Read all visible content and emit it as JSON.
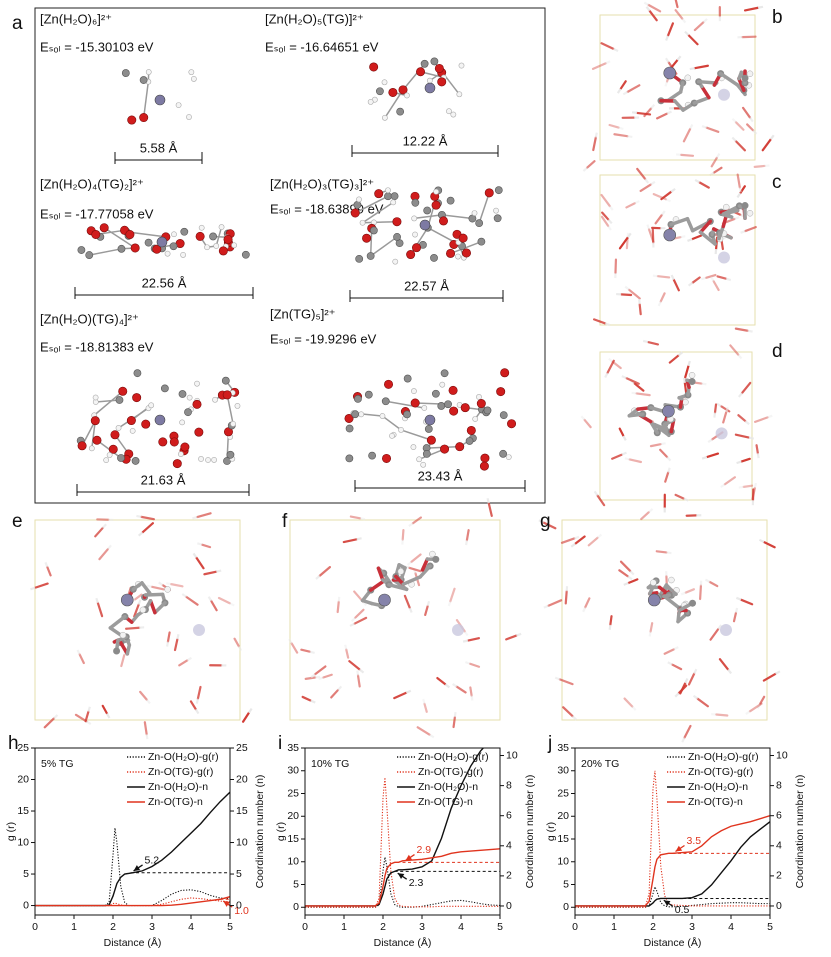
{
  "panel_a": {
    "label": "a",
    "items": [
      {
        "formula": "[Zn(H₂O)₆]²⁺",
        "energy": "Eₛₒₗ = -15.30103 eV",
        "length": "5.58 Å"
      },
      {
        "formula": "[Zn(H₂O)₅(TG)]²⁺",
        "energy": "Eₛₒₗ = -16.64651 eV",
        "length": "12.22 Å"
      },
      {
        "formula": "[Zn(H₂O)₄(TG)₂]²⁺",
        "energy": "Eₛₒₗ = -17.77058 eV",
        "length": "22.56 Å"
      },
      {
        "formula": "[Zn(H₂O)₃(TG)₃]²⁺",
        "energy": "Eₛₒₗ = -18.63899 eV",
        "length": "22.57 Å"
      },
      {
        "formula": "[Zn(H₂O)(TG)₄]²⁺",
        "energy": "Eₛₒₗ = -18.81383 eV",
        "length": "21.63 Å"
      },
      {
        "formula": "[Zn(TG)₅]²⁺",
        "energy": "Eₛₒₗ = -19.9296 eV",
        "length": "23.43 Å"
      }
    ]
  },
  "snapshots": [
    {
      "label": "b"
    },
    {
      "label": "c"
    },
    {
      "label": "d"
    },
    {
      "label": "e"
    },
    {
      "label": "f"
    },
    {
      "label": "g"
    }
  ],
  "chart_data": [
    {
      "type": "line",
      "panel": "h",
      "label": "5% TG",
      "x_label": "Distance (Å)",
      "y_label": "g (r)",
      "y2_label": "Coordination number (n)",
      "x": [
        0,
        0.5,
        1,
        1.5,
        1.8,
        1.9,
        2.0,
        2.05,
        2.1,
        2.2,
        2.3,
        2.4,
        2.5,
        2.75,
        3,
        3.25,
        3.5,
        3.75,
        4,
        4.25,
        4.5,
        4.75,
        5
      ],
      "xlim": [
        0,
        5
      ],
      "xticks": [
        0,
        1,
        2,
        3,
        4,
        5
      ],
      "ylim": [
        -1.5,
        25
      ],
      "yticks": [
        0,
        5,
        10,
        15,
        20,
        25
      ],
      "y2lim": [
        -1.5,
        25
      ],
      "y2ticks": [
        0,
        5,
        10,
        15,
        20,
        25
      ],
      "series": [
        {
          "name": "Zn-O(H₂O)-g(r)",
          "color": "#111111",
          "line_style": "dotted",
          "values": [
            0,
            0,
            0,
            0,
            0,
            0.5,
            8,
            12.3,
            10,
            3,
            0.5,
            0,
            0,
            0,
            0,
            0.8,
            1.8,
            2.4,
            2.5,
            2.2,
            1.6,
            1.2,
            1.1
          ]
        },
        {
          "name": "Zn-O(TG)-g(r)",
          "color": "#e0341e",
          "line_style": "dotted",
          "values": [
            0,
            0,
            0,
            0,
            0,
            0,
            0.3,
            0.4,
            0.3,
            0.1,
            0,
            0,
            0,
            0,
            0,
            0.2,
            0.6,
            1.0,
            1.2,
            1.1,
            0.9,
            0.7,
            0.6
          ]
        },
        {
          "name": "Zn-O(H₂O)-n",
          "color": "#111111",
          "line_style": "solid",
          "axis": "y2",
          "values": [
            0,
            0,
            0,
            0,
            0,
            0.1,
            1.5,
            2.5,
            3.5,
            4.5,
            5.0,
            5.1,
            5.2,
            5.5,
            6.2,
            7.2,
            8.5,
            10,
            11.5,
            13,
            14.8,
            16.5,
            18
          ]
        },
        {
          "name": "Zn-O(TG)-n",
          "color": "#e0341e",
          "line_style": "solid",
          "axis": "y2",
          "values": [
            0,
            0,
            0,
            0,
            0,
            0,
            0,
            0,
            0,
            0,
            0,
            0,
            0,
            0,
            0,
            0,
            0.05,
            0.2,
            0.4,
            0.6,
            0.8,
            1.0,
            1.4
          ]
        }
      ],
      "annotations": [
        {
          "text": "5.2",
          "x": 2.45,
          "y": 5.2,
          "axis": "y2",
          "color": "#111111"
        },
        {
          "text": "1.0",
          "x": 4.75,
          "y": 1.0,
          "axis": "y2",
          "color": "#e0341e"
        }
      ]
    },
    {
      "type": "line",
      "panel": "i",
      "label": "10% TG",
      "x_label": "Distance (Å)",
      "y_label": "g (r)",
      "y2_label": "Coordination number (n)",
      "x": [
        0,
        0.5,
        1,
        1.5,
        1.8,
        1.9,
        2.0,
        2.05,
        2.1,
        2.2,
        2.3,
        2.4,
        2.5,
        2.75,
        3,
        3.25,
        3.5,
        3.75,
        4,
        4.25,
        4.5,
        4.75,
        5
      ],
      "xlim": [
        0,
        5
      ],
      "xticks": [
        0,
        1,
        2,
        3,
        4,
        5
      ],
      "ylim": [
        -1.7,
        35
      ],
      "yticks": [
        0,
        5,
        10,
        15,
        20,
        25,
        30,
        35
      ],
      "y2lim": [
        -0.6,
        10.5
      ],
      "y2ticks": [
        0,
        2,
        4,
        6,
        8,
        10
      ],
      "series": [
        {
          "name": "Zn-O(H₂O)-g(r)",
          "color": "#111111",
          "line_style": "dotted",
          "values": [
            0,
            0,
            0,
            0,
            0,
            0.5,
            8,
            11,
            9,
            3,
            0.6,
            0.1,
            0,
            0,
            0.2,
            0.6,
            1.0,
            1.4,
            1.5,
            1.2,
            0.8,
            0.5,
            0.4
          ]
        },
        {
          "name": "Zn-O(TG)-g(r)",
          "color": "#e0341e",
          "line_style": "dotted",
          "values": [
            0,
            0,
            0,
            0,
            0,
            2,
            24,
            28.5,
            22,
            8,
            2,
            0.5,
            0.2,
            0.1,
            0.1,
            0.1,
            0.2,
            0.2,
            0.2,
            0.2,
            0.2,
            0.2,
            0.2
          ]
        },
        {
          "name": "Zn-O(H₂O)-n",
          "color": "#111111",
          "line_style": "solid",
          "axis": "y2",
          "values": [
            0,
            0,
            0,
            0,
            0,
            0.1,
            0.8,
            1.3,
            1.8,
            2.2,
            2.3,
            2.4,
            2.4,
            2.45,
            2.6,
            3.0,
            4.5,
            6.5,
            8.0,
            9.3,
            10.3,
            11,
            11.6
          ]
        },
        {
          "name": "Zn-O(TG)-n",
          "color": "#e0341e",
          "line_style": "solid",
          "axis": "y2",
          "values": [
            0,
            0,
            0,
            0,
            0,
            0.2,
            1.3,
            2.0,
            2.5,
            2.8,
            2.9,
            2.9,
            3.0,
            3.05,
            3.1,
            3.2,
            3.3,
            3.5,
            3.6,
            3.65,
            3.7,
            3.75,
            3.8
          ]
        }
      ],
      "annotations": [
        {
          "text": "2.9",
          "x": 2.5,
          "y": 2.9,
          "axis": "y2",
          "color": "#e0341e"
        },
        {
          "text": "2.3",
          "x": 2.3,
          "y": 2.3,
          "axis": "y2",
          "color": "#111111"
        }
      ]
    },
    {
      "type": "line",
      "panel": "j",
      "label": "20% TG",
      "x_label": "Distance (Å)",
      "y_label": "g (r)",
      "y2_label": "Coordination number (n)",
      "x": [
        0,
        0.5,
        1,
        1.5,
        1.8,
        1.9,
        2.0,
        2.05,
        2.1,
        2.2,
        2.3,
        2.4,
        2.5,
        2.75,
        3,
        3.25,
        3.5,
        3.75,
        4,
        4.25,
        4.5,
        4.75,
        5
      ],
      "xlim": [
        0,
        5
      ],
      "xticks": [
        0,
        1,
        2,
        3,
        4,
        5
      ],
      "ylim": [
        -1.7,
        35
      ],
      "yticks": [
        0,
        5,
        10,
        15,
        20,
        25,
        30,
        35
      ],
      "y2lim": [
        -0.6,
        10.5
      ],
      "y2ticks": [
        0,
        2,
        4,
        6,
        8,
        10
      ],
      "series": [
        {
          "name": "Zn-O(H₂O)-g(r)",
          "color": "#111111",
          "line_style": "dotted",
          "values": [
            0,
            0,
            0,
            0,
            0,
            0.3,
            3,
            4.5,
            3.5,
            1,
            0.3,
            0.1,
            0.1,
            0.2,
            0.4,
            0.6,
            0.8,
            0.9,
            1.0,
            1.0,
            0.9,
            0.8,
            0.8
          ]
        },
        {
          "name": "Zn-O(TG)-g(r)",
          "color": "#e0341e",
          "line_style": "dotted",
          "values": [
            0,
            0,
            0,
            0,
            0,
            3,
            26,
            30,
            24,
            9,
            2.5,
            0.8,
            0.5,
            0.4,
            0.3,
            0.3,
            0.3,
            0.3,
            0.3,
            0.3,
            0.3,
            0.3,
            0.3
          ]
        },
        {
          "name": "Zn-O(H₂O)-n",
          "color": "#111111",
          "line_style": "solid",
          "axis": "y2",
          "values": [
            0,
            0,
            0,
            0,
            0,
            0,
            0.2,
            0.35,
            0.45,
            0.5,
            0.5,
            0.5,
            0.5,
            0.5,
            0.55,
            0.8,
            1.4,
            2.2,
            3.0,
            3.9,
            4.6,
            5.1,
            5.6
          ]
        },
        {
          "name": "Zn-O(TG)-n",
          "color": "#e0341e",
          "line_style": "solid",
          "axis": "y2",
          "values": [
            0,
            0,
            0,
            0,
            0,
            0.3,
            1.8,
            2.6,
            3.1,
            3.4,
            3.45,
            3.5,
            3.5,
            3.55,
            3.6,
            4.0,
            4.6,
            5.0,
            5.3,
            5.45,
            5.6,
            5.8,
            6.0
          ]
        }
      ],
      "annotations": [
        {
          "text": "3.5",
          "x": 2.5,
          "y": 3.5,
          "axis": "y2",
          "color": "#e0341e"
        },
        {
          "text": "0.5",
          "x": 2.2,
          "y": 0.5,
          "axis": "y2",
          "color": "#111111"
        }
      ]
    }
  ]
}
